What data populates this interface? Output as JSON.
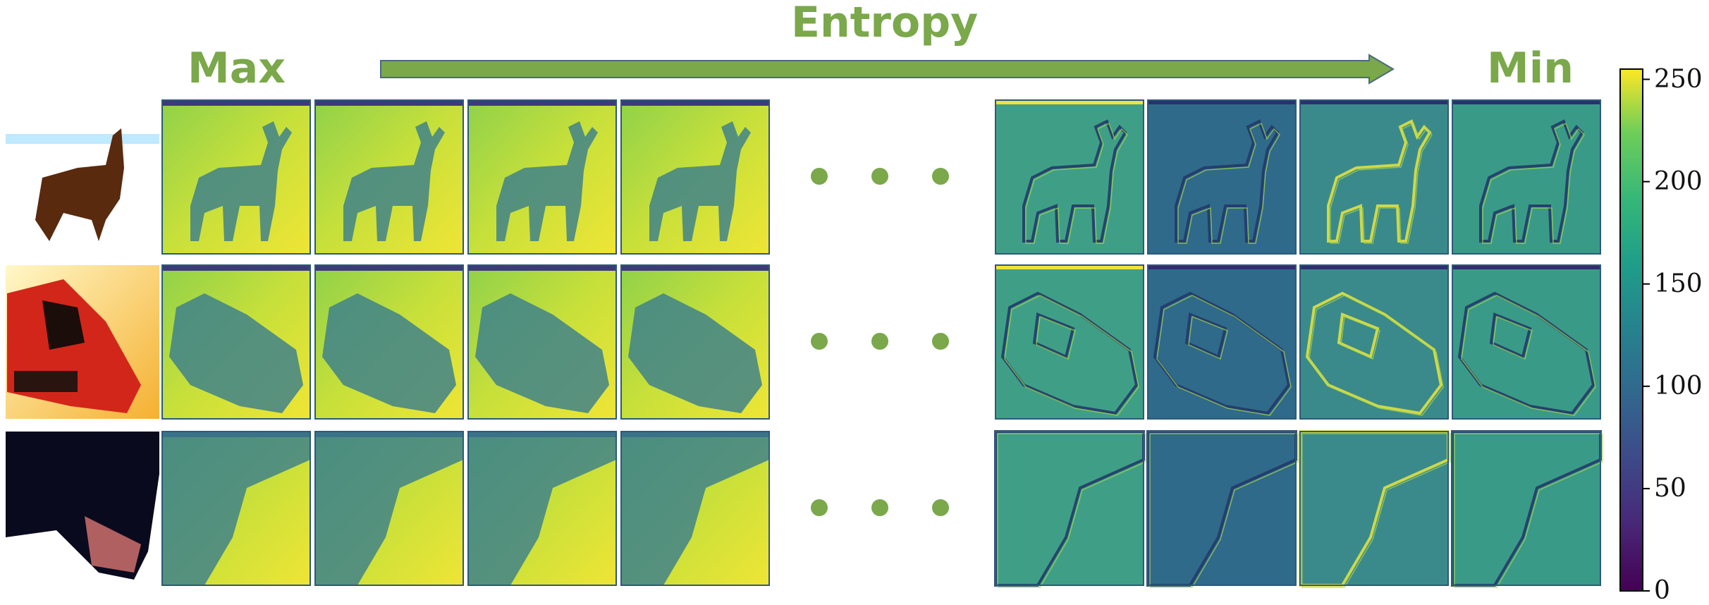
{
  "header": {
    "entropy_label": "Entropy",
    "max_label": "Max",
    "min_label": "Min",
    "accent_color": "#7aa84a"
  },
  "rows": [
    {
      "subject": "deer",
      "high_entropy_maps": 4,
      "low_entropy_maps": 4
    },
    {
      "subject": "automobile",
      "high_entropy_maps": 4,
      "low_entropy_maps": 4
    },
    {
      "subject": "dog",
      "high_entropy_maps": 4,
      "low_entropy_maps": 4
    }
  ],
  "colorbar": {
    "colormap": "viridis",
    "range": [
      0,
      255
    ],
    "ticks": [
      "0",
      "50",
      "100",
      "150",
      "200",
      "250"
    ]
  }
}
